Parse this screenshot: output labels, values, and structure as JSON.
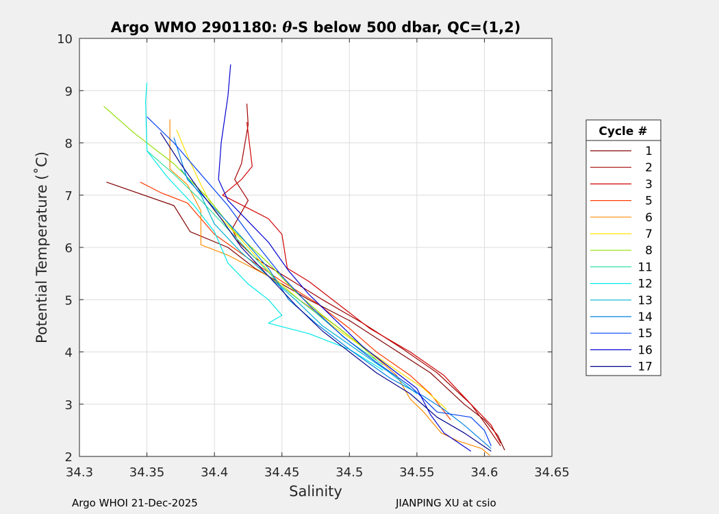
{
  "footer": {
    "left": "Argo WHOI 21-Dec-2025",
    "right": "JIANPING XU at csio"
  },
  "chart_data": {
    "type": "line",
    "title_prefix": "Argo WMO 2901180: ",
    "title_symbol": "θ",
    "title_suffix": "-S below 500 dbar,  QC=(1,2)",
    "xlabel": "Salinity",
    "ylabel": "Potential Temperature (˚C)",
    "xlim": [
      34.3,
      34.65
    ],
    "ylim": [
      2,
      10
    ],
    "xticks": [
      "34.3",
      "34.35",
      "34.4",
      "34.45",
      "34.5",
      "34.55",
      "34.6",
      "34.65"
    ],
    "yticks": [
      "2",
      "3",
      "4",
      "5",
      "6",
      "7",
      "8",
      "9",
      "10"
    ],
    "grid": true,
    "legend": {
      "title": "Cycle #",
      "location": "right-outside"
    },
    "series": [
      {
        "name": "1",
        "color": "#800000",
        "points": [
          [
            34.32,
            7.25
          ],
          [
            34.37,
            6.8
          ],
          [
            34.382,
            6.3
          ],
          [
            34.41,
            6.0
          ],
          [
            34.43,
            5.6
          ],
          [
            34.45,
            5.3
          ],
          [
            34.47,
            5.0
          ],
          [
            34.5,
            4.6
          ],
          [
            34.53,
            4.1
          ],
          [
            34.56,
            3.6
          ],
          [
            34.585,
            3.0
          ],
          [
            34.6,
            2.7
          ],
          [
            34.61,
            2.4
          ],
          [
            34.615,
            2.12
          ]
        ]
      },
      {
        "name": "2",
        "color": "#a00000",
        "points": [
          [
            34.424,
            8.75
          ],
          [
            34.425,
            8.35
          ],
          [
            34.42,
            7.6
          ],
          [
            34.415,
            7.3
          ],
          [
            34.425,
            6.9
          ],
          [
            34.413,
            6.35
          ],
          [
            34.418,
            6.1
          ],
          [
            34.43,
            5.8
          ],
          [
            34.455,
            5.4
          ],
          [
            34.48,
            5.0
          ],
          [
            34.51,
            4.55
          ],
          [
            34.54,
            4.05
          ],
          [
            34.565,
            3.6
          ],
          [
            34.59,
            3.0
          ],
          [
            34.6,
            2.65
          ],
          [
            34.612,
            2.2
          ]
        ]
      },
      {
        "name": "3",
        "color": "#d00000",
        "points": [
          [
            34.424,
            8.4
          ],
          [
            34.428,
            7.55
          ],
          [
            34.42,
            7.3
          ],
          [
            34.406,
            7.0
          ],
          [
            34.44,
            6.55
          ],
          [
            34.45,
            6.25
          ],
          [
            34.454,
            5.6
          ],
          [
            34.47,
            5.35
          ],
          [
            34.49,
            4.95
          ],
          [
            34.515,
            4.45
          ],
          [
            34.545,
            4.0
          ],
          [
            34.57,
            3.55
          ],
          [
            34.59,
            3.0
          ],
          [
            34.605,
            2.6
          ],
          [
            34.612,
            2.25
          ]
        ]
      },
      {
        "name": "5",
        "color": "#ff3a00",
        "points": [
          [
            34.345,
            7.25
          ],
          [
            34.36,
            7.05
          ],
          [
            34.38,
            6.85
          ],
          [
            34.4,
            6.25
          ],
          [
            34.43,
            5.7
          ],
          [
            34.45,
            5.35
          ],
          [
            34.475,
            4.95
          ],
          [
            34.5,
            4.45
          ],
          [
            34.52,
            4.0
          ],
          [
            34.545,
            3.55
          ],
          [
            34.56,
            3.2
          ],
          [
            34.575,
            2.7
          ]
        ]
      },
      {
        "name": "6",
        "color": "#ff8c00",
        "points": [
          [
            34.367,
            8.45
          ],
          [
            34.367,
            7.5
          ],
          [
            34.38,
            7.2
          ],
          [
            34.39,
            6.7
          ],
          [
            34.39,
            6.05
          ],
          [
            34.41,
            5.85
          ],
          [
            34.44,
            5.45
          ],
          [
            34.46,
            5.05
          ],
          [
            34.49,
            4.5
          ],
          [
            34.515,
            4.0
          ],
          [
            34.535,
            3.55
          ],
          [
            34.545,
            3.1
          ],
          [
            34.555,
            2.85
          ],
          [
            34.568,
            2.45
          ],
          [
            34.58,
            2.3
          ],
          [
            34.598,
            2.15
          ],
          [
            34.604,
            2.02
          ]
        ]
      },
      {
        "name": "7",
        "color": "#ffe000",
        "points": [
          [
            34.372,
            8.25
          ],
          [
            34.38,
            7.75
          ],
          [
            34.39,
            7.2
          ],
          [
            34.4,
            6.7
          ],
          [
            34.425,
            6.0
          ],
          [
            34.445,
            5.4
          ],
          [
            34.465,
            4.95
          ],
          [
            34.49,
            4.45
          ],
          [
            34.515,
            4.0
          ],
          [
            34.535,
            3.65
          ],
          [
            34.555,
            3.3
          ],
          [
            34.572,
            2.9
          ]
        ]
      },
      {
        "name": "8",
        "color": "#90e000",
        "points": [
          [
            34.318,
            8.7
          ],
          [
            34.34,
            8.2
          ],
          [
            34.37,
            7.6
          ],
          [
            34.395,
            6.95
          ],
          [
            34.415,
            6.3
          ],
          [
            34.44,
            5.7
          ],
          [
            34.46,
            5.15
          ],
          [
            34.48,
            4.7
          ],
          [
            34.505,
            4.2
          ],
          [
            34.52,
            3.85
          ]
        ]
      },
      {
        "name": "11",
        "color": "#30e0a0",
        "points": [
          [
            34.35,
            7.85
          ],
          [
            34.37,
            7.4
          ],
          [
            34.39,
            6.9
          ],
          [
            34.41,
            6.35
          ],
          [
            34.43,
            5.8
          ],
          [
            34.45,
            5.25
          ],
          [
            34.475,
            4.75
          ],
          [
            34.5,
            4.2
          ],
          [
            34.525,
            3.75
          ]
        ]
      },
      {
        "name": "12",
        "color": "#00e8e8",
        "points": [
          [
            34.35,
            9.15
          ],
          [
            34.349,
            8.8
          ],
          [
            34.35,
            7.85
          ],
          [
            34.365,
            7.35
          ],
          [
            34.385,
            6.8
          ],
          [
            34.4,
            6.3
          ],
          [
            34.41,
            5.7
          ],
          [
            34.425,
            5.3
          ],
          [
            34.44,
            5.0
          ],
          [
            34.45,
            4.7
          ],
          [
            34.44,
            4.55
          ],
          [
            34.47,
            4.35
          ],
          [
            34.5,
            4.05
          ],
          [
            34.525,
            3.65
          ]
        ]
      },
      {
        "name": "13",
        "color": "#00b0d0",
        "points": [
          [
            34.375,
            7.5
          ],
          [
            34.39,
            7.0
          ],
          [
            34.4,
            6.45
          ],
          [
            34.42,
            5.9
          ],
          [
            34.44,
            5.45
          ],
          [
            34.46,
            5.0
          ],
          [
            34.48,
            4.5
          ],
          [
            34.505,
            4.05
          ],
          [
            34.53,
            3.6
          ],
          [
            34.55,
            3.2
          ]
        ]
      },
      {
        "name": "14",
        "color": "#0080e0",
        "points": [
          [
            34.37,
            8.1
          ],
          [
            34.38,
            7.3
          ],
          [
            34.4,
            6.75
          ],
          [
            34.42,
            6.2
          ],
          [
            34.44,
            5.6
          ],
          [
            34.455,
            5.0
          ],
          [
            34.475,
            4.55
          ],
          [
            34.5,
            4.05
          ],
          [
            34.53,
            3.5
          ],
          [
            34.555,
            3.15
          ],
          [
            34.57,
            2.9
          ],
          [
            34.585,
            2.6
          ],
          [
            34.605,
            2.15
          ]
        ]
      },
      {
        "name": "15",
        "color": "#0040f0",
        "points": [
          [
            34.35,
            8.5
          ],
          [
            34.37,
            8.0
          ],
          [
            34.39,
            7.4
          ],
          [
            34.41,
            6.8
          ],
          [
            34.43,
            6.1
          ],
          [
            34.45,
            5.45
          ],
          [
            34.47,
            4.9
          ],
          [
            34.495,
            4.3
          ],
          [
            34.52,
            3.8
          ],
          [
            34.545,
            3.35
          ],
          [
            34.565,
            2.85
          ],
          [
            34.59,
            2.75
          ],
          [
            34.6,
            2.5
          ],
          [
            34.605,
            2.2
          ]
        ]
      },
      {
        "name": "16",
        "color": "#0000d0",
        "points": [
          [
            34.412,
            9.5
          ],
          [
            34.41,
            8.9
          ],
          [
            34.405,
            8.0
          ],
          [
            34.403,
            7.3
          ],
          [
            34.41,
            6.9
          ],
          [
            34.425,
            6.5
          ],
          [
            34.44,
            6.1
          ],
          [
            34.455,
            5.55
          ],
          [
            34.47,
            5.1
          ],
          [
            34.49,
            4.6
          ],
          [
            34.51,
            4.1
          ],
          [
            34.53,
            3.7
          ],
          [
            34.55,
            3.3
          ],
          [
            34.56,
            2.8
          ],
          [
            34.57,
            2.45
          ],
          [
            34.59,
            2.1
          ]
        ]
      },
      {
        "name": "17",
        "color": "#00008b",
        "points": [
          [
            34.36,
            8.2
          ],
          [
            34.375,
            7.6
          ],
          [
            34.39,
            7.05
          ],
          [
            34.405,
            6.55
          ],
          [
            34.42,
            6.0
          ],
          [
            34.44,
            5.45
          ],
          [
            34.46,
            4.9
          ],
          [
            34.48,
            4.4
          ],
          [
            34.5,
            4.0
          ],
          [
            34.52,
            3.6
          ],
          [
            34.545,
            3.2
          ],
          [
            34.565,
            2.75
          ],
          [
            34.585,
            2.45
          ],
          [
            34.605,
            2.1
          ]
        ]
      }
    ]
  }
}
